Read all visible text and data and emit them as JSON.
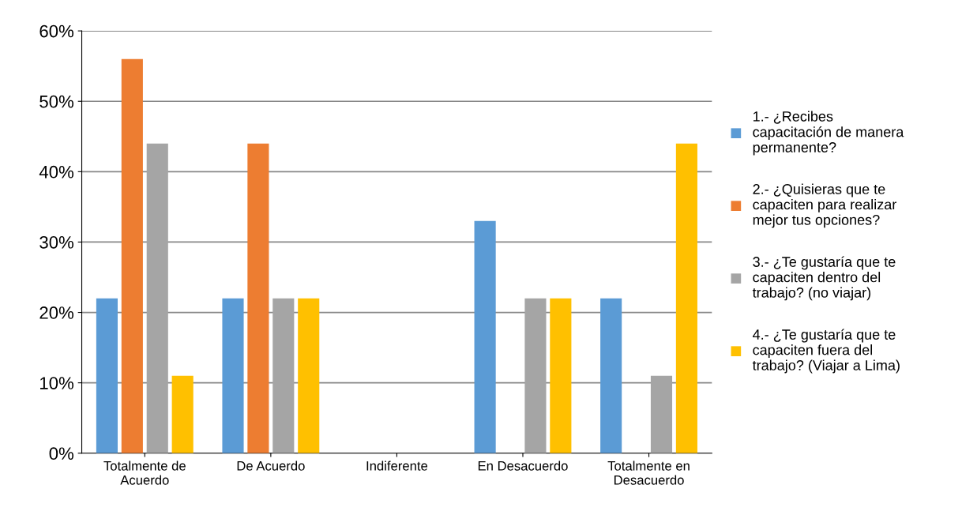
{
  "chart_data": {
    "type": "bar",
    "categories": [
      "Totalmente de\nAcuerdo",
      "De Acuerdo",
      "Indiferente",
      "En Desacuerdo",
      "Totalmente en\nDesacuerdo"
    ],
    "series": [
      {
        "name": "1.- ¿Recibes\ncapacitación de manera\npermanente?",
        "color": "#5b9bd5",
        "values": [
          22,
          22,
          0,
          33,
          22
        ]
      },
      {
        "name": "2.- ¿Quisieras que te\ncapaciten para realizar\nmejor tus opciones?",
        "color": "#ed7d31",
        "values": [
          56,
          44,
          0,
          0,
          0
        ]
      },
      {
        "name": "3.- ¿Te gustaría que te\ncapaciten dentro del\ntrabajo? (no viajar)",
        "color": "#a5a5a5",
        "values": [
          44,
          22,
          0,
          22,
          11
        ]
      },
      {
        "name": "4.- ¿Te gustaría que te\ncapaciten fuera del\ntrabajo? (Viajar a Lima)",
        "color": "#ffc000",
        "values": [
          11,
          22,
          0,
          22,
          44
        ]
      }
    ],
    "ylim": [
      0,
      60
    ],
    "yticks": [
      {
        "value": 0,
        "label": "0%"
      },
      {
        "value": 10,
        "label": "10%"
      },
      {
        "value": 20,
        "label": "20%"
      },
      {
        "value": 30,
        "label": "30%"
      },
      {
        "value": 40,
        "label": "40%"
      },
      {
        "value": 50,
        "label": "50%"
      },
      {
        "value": 60,
        "label": "60%"
      }
    ],
    "grid": "y",
    "legend": "right"
  }
}
